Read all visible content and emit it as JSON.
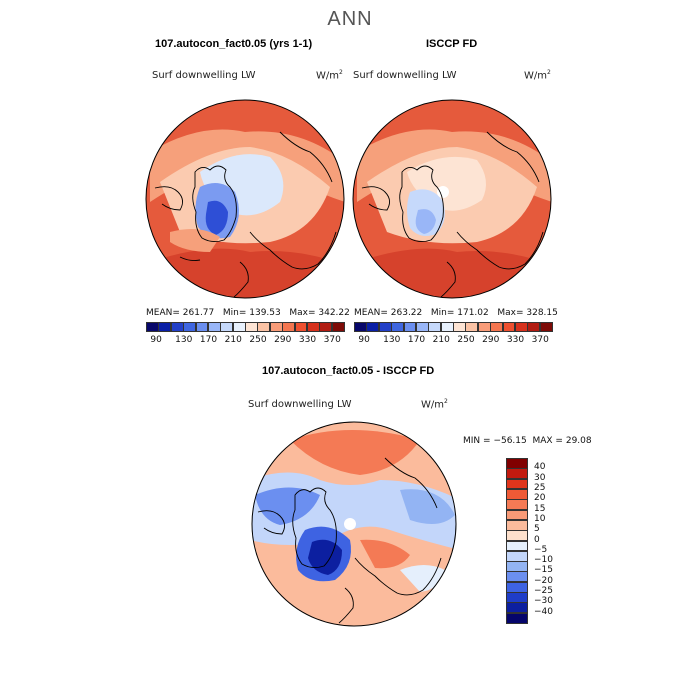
{
  "title": "ANN",
  "panels": [
    {
      "title": "107.autocon_fact0.05 (yrs 1-1)",
      "variable": "Surf downwelling LW",
      "units_base": "W/m",
      "units_exp": "2",
      "mean_label": "MEAN=",
      "mean": "261.77",
      "min_label": "Min=",
      "min": "139.53",
      "max_label": "Max=",
      "max": "342.22"
    },
    {
      "title": "ISCCP FD",
      "variable": "Surf downwelling LW",
      "units_base": "W/m",
      "units_exp": "2",
      "mean_label": "MEAN=",
      "mean": "263.22",
      "min_label": "Min=",
      "min": "171.02",
      "max_label": "Max=",
      "max": "328.15"
    }
  ],
  "abs_colorbar": {
    "ticks": [
      "90",
      "130",
      "170",
      "210",
      "250",
      "290",
      "330",
      "370"
    ],
    "colors": [
      "#08086b",
      "#0a1fa6",
      "#2340c8",
      "#3f66e0",
      "#6b8ff0",
      "#99b6f7",
      "#c6d9fb",
      "#e8f1fd",
      "#fde4d4",
      "#fbc3a5",
      "#f89c79",
      "#f47650",
      "#ee5030",
      "#d6311d",
      "#b11c12",
      "#7d0b07"
    ]
  },
  "diff_panel": {
    "title": "107.autocon_fact0.05 - ISCCP FD",
    "variable": "Surf downwelling LW",
    "units_base": "W/m",
    "units_exp": "2",
    "min_label": "MIN =",
    "min": "−56.15",
    "max_label": "MAX =",
    "max": "29.08"
  },
  "diff_colorbar": {
    "levels": [
      "40",
      "30",
      "25",
      "20",
      "15",
      "10",
      "5",
      "0",
      "−5",
      "−10",
      "−15",
      "−20",
      "−25",
      "−30",
      "−40"
    ],
    "colors": [
      "#800000",
      "#c21a0f",
      "#e0351c",
      "#ef5a36",
      "#f47a55",
      "#f89a77",
      "#fbbb9c",
      "#fde0cc",
      "#e5effc",
      "#c3d6fa",
      "#93b4f3",
      "#6b8ff0",
      "#3e63e2",
      "#1f3dc8",
      "#0c1fa0",
      "#05056b"
    ]
  },
  "map_colors": {
    "ocean_warm": "#e2533a",
    "mid": "#f8a07a",
    "light": "#fddac6",
    "pale_blue": "#dbe8fb",
    "deep_blue": "#2847d4",
    "coast": "#000000"
  }
}
